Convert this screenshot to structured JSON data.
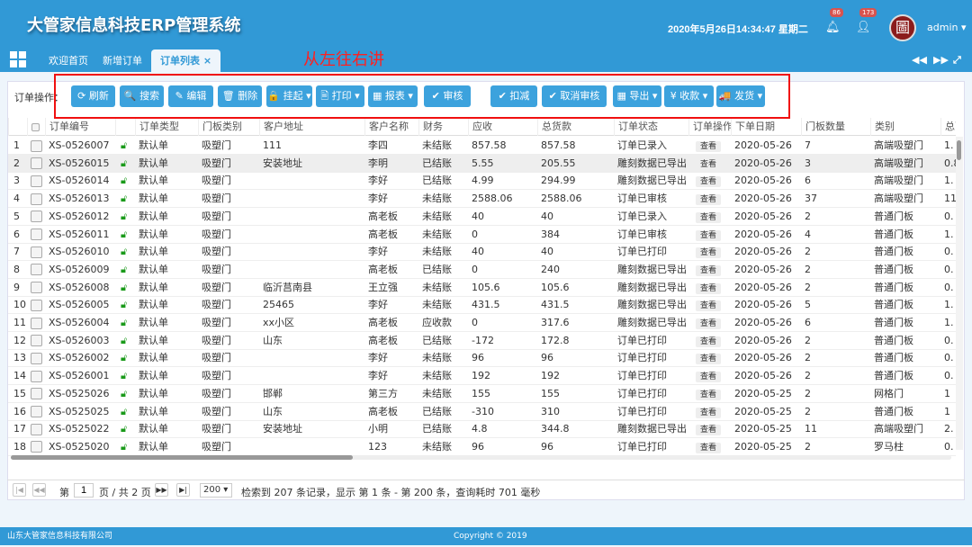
{
  "header": {
    "title": "大管家信息科技ERP管理系统",
    "datetime": "2020年5月26日14:34:47 星期二",
    "notifications": "86",
    "messages": "173",
    "user": "admin",
    "avatar_glyph": "圖"
  },
  "tabs": [
    {
      "label": "欢迎首页"
    },
    {
      "label": "新增订单"
    },
    {
      "label": "订单列表 ×",
      "active": true
    }
  ],
  "annotation": "从左往右讲",
  "toolbar": {
    "label": "订单操作：",
    "buttons": [
      "⟳ 刷新",
      "🔍 搜索",
      "✎ 编辑",
      "🗑 删除",
      "🔒 挂起 ▾",
      "🖹 打印 ▾",
      "▦ 报表 ▾",
      "✔ 审核",
      "✔ 扣减",
      "✔ 取消审核",
      "▦ 导出 ▾",
      "¥ 收款 ▾",
      "🚚 发货 ▾"
    ]
  },
  "table": {
    "columns": [
      "",
      "",
      "订单编号",
      "",
      "订单类型",
      "门板类别",
      "客户地址",
      "客户名称",
      "财务",
      "应收",
      "总货款",
      "订单状态",
      "订单操作",
      "下单日期",
      "门板数量",
      "类别",
      "总面积"
    ],
    "view_label": "查看",
    "rows": [
      [
        "1",
        "XS-0526007",
        "默认单",
        "吸塑门",
        "111",
        "李四",
        "未结账",
        "857.58",
        "857.58",
        "订单已录入",
        "2020-05-26",
        "7",
        "高端吸塑门",
        "1."
      ],
      [
        "2",
        "XS-0526015",
        "默认单",
        "吸塑门",
        "安装地址",
        "李明",
        "已结账",
        "5.55",
        "205.55",
        "雕刻数据已导出",
        "2020-05-26",
        "3",
        "高端吸塑门",
        "0.8"
      ],
      [
        "3",
        "XS-0526014",
        "默认单",
        "吸塑门",
        "",
        "李好",
        "已结账",
        "4.99",
        "294.99",
        "雕刻数据已导出",
        "2020-05-26",
        "6",
        "高端吸塑门",
        "1."
      ],
      [
        "4",
        "XS-0526013",
        "默认单",
        "吸塑门",
        "",
        "李好",
        "未结账",
        "2588.06",
        "2588.06",
        "订单已审核",
        "2020-05-26",
        "37",
        "高端吸塑门",
        "11"
      ],
      [
        "5",
        "XS-0526012",
        "默认单",
        "吸塑门",
        "",
        "高老板",
        "未结账",
        "40",
        "40",
        "订单已录入",
        "2020-05-26",
        "2",
        "普通门板",
        "0."
      ],
      [
        "6",
        "XS-0526011",
        "默认单",
        "吸塑门",
        "",
        "高老板",
        "未结账",
        "0",
        "384",
        "订单已审核",
        "2020-05-26",
        "4",
        "普通门板",
        "1."
      ],
      [
        "7",
        "XS-0526010",
        "默认单",
        "吸塑门",
        "",
        "李好",
        "未结账",
        "40",
        "40",
        "订单已打印",
        "2020-05-26",
        "2",
        "普通门板",
        "0."
      ],
      [
        "8",
        "XS-0526009",
        "默认单",
        "吸塑门",
        "",
        "高老板",
        "已结账",
        "0",
        "240",
        "雕刻数据已导出",
        "2020-05-26",
        "2",
        "普通门板",
        "0."
      ],
      [
        "9",
        "XS-0526008",
        "默认单",
        "吸塑门",
        "临沂莒南县",
        "王立强",
        "未结账",
        "105.6",
        "105.6",
        "雕刻数据已导出",
        "2020-05-26",
        "2",
        "普通门板",
        "0."
      ],
      [
        "10",
        "XS-0526005",
        "默认单",
        "吸塑门",
        "25465",
        "李好",
        "未结账",
        "431.5",
        "431.5",
        "雕刻数据已导出",
        "2020-05-26",
        "5",
        "普通门板",
        "1."
      ],
      [
        "11",
        "XS-0526004",
        "默认单",
        "吸塑门",
        "xx小区",
        "高老板",
        "应收款",
        "0",
        "317.6",
        "雕刻数据已导出",
        "2020-05-26",
        "6",
        "普通门板",
        "1."
      ],
      [
        "12",
        "XS-0526003",
        "默认单",
        "吸塑门",
        "山东",
        "高老板",
        "已结账",
        "-172",
        "172.8",
        "订单已打印",
        "2020-05-26",
        "2",
        "普通门板",
        "0."
      ],
      [
        "13",
        "XS-0526002",
        "默认单",
        "吸塑门",
        "",
        "李好",
        "未结账",
        "96",
        "96",
        "订单已打印",
        "2020-05-26",
        "2",
        "普通门板",
        "0."
      ],
      [
        "14",
        "XS-0526001",
        "默认单",
        "吸塑门",
        "",
        "李好",
        "未结账",
        "192",
        "192",
        "订单已打印",
        "2020-05-26",
        "2",
        "普通门板",
        "0."
      ],
      [
        "15",
        "XS-0525026",
        "默认单",
        "吸塑门",
        "邯郸",
        "第三方",
        "未结账",
        "155",
        "155",
        "订单已打印",
        "2020-05-25",
        "2",
        "网格门",
        "1"
      ],
      [
        "16",
        "XS-0525025",
        "默认单",
        "吸塑门",
        "山东",
        "高老板",
        "已结账",
        "-310",
        "310",
        "订单已打印",
        "2020-05-25",
        "2",
        "普通门板",
        "1"
      ],
      [
        "17",
        "XS-0525022",
        "默认单",
        "吸塑门",
        "安装地址",
        "小明",
        "已结账",
        "4.8",
        "344.8",
        "雕刻数据已导出",
        "2020-05-25",
        "11",
        "高端吸塑门",
        "2."
      ],
      [
        "18",
        "XS-0525020",
        "默认单",
        "吸塑门",
        "",
        "123",
        "未结账",
        "96",
        "96",
        "订单已打印",
        "2020-05-25",
        "2",
        "罗马柱",
        "0."
      ]
    ]
  },
  "pager": {
    "page_prefix": "第",
    "page": "1",
    "page_suffix": "页 / 共 2 页",
    "page_size": "200 ▾",
    "summary": "检索到 207 条记录，显示 第 1 条 - 第 200 条，查询耗时 701 毫秒"
  },
  "footer": {
    "company": "山东大管家信息科技有限公司",
    "copyright": "Copyright © 2019"
  },
  "colors": {
    "brand": "#3199d6",
    "button": "#3ca2dd",
    "annotation": "#f01010",
    "lock": "#1a9a1a"
  }
}
